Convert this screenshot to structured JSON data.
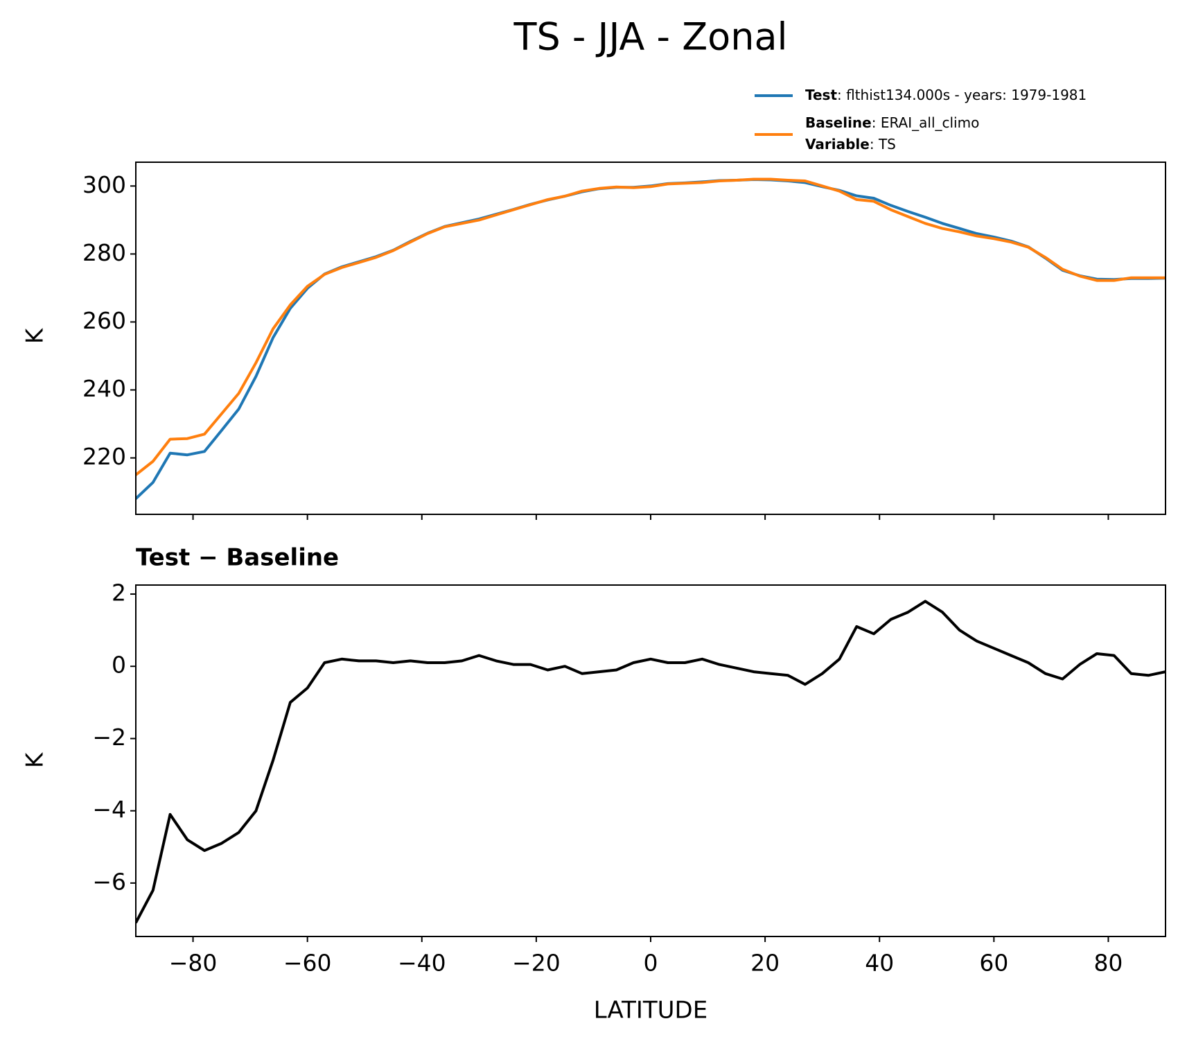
{
  "chart_data": [
    {
      "type": "line",
      "title": "TS - JJA - Zonal",
      "y_label": "K",
      "x": [
        -90,
        -87,
        -84,
        -81,
        -78,
        -75,
        -72,
        -69,
        -66,
        -63,
        -60,
        -57,
        -54,
        -51,
        -48,
        -45,
        -42,
        -39,
        -36,
        -33,
        -30,
        -27,
        -24,
        -21,
        -18,
        -15,
        -12,
        -9,
        -6,
        -3,
        0,
        3,
        6,
        9,
        12,
        15,
        18,
        21,
        24,
        27,
        30,
        33,
        36,
        39,
        42,
        45,
        48,
        51,
        54,
        57,
        60,
        63,
        66,
        69,
        72,
        75,
        78,
        81,
        84,
        87,
        90
      ],
      "series": [
        {
          "name": "Test",
          "label": ": flthist134.000s - years: 1979-1981",
          "color": "#1f77b4",
          "values": [
            208,
            212.8,
            221.4,
            220.9,
            221.9,
            228.1,
            234.4,
            244,
            255.4,
            264,
            269.9,
            274.1,
            276.2,
            277.7,
            279.2,
            281.1,
            283.7,
            286.1,
            288.1,
            289.2,
            290.3,
            291.7,
            293.1,
            294.6,
            295.9,
            297,
            298.3,
            299.2,
            299.6,
            299.6,
            300,
            300.7,
            300.9,
            301.2,
            301.6,
            301.7,
            301.9,
            301.8,
            301.5,
            301,
            299.8,
            298.7,
            297.1,
            296.4,
            294.3,
            292.5,
            290.8,
            289,
            287.5,
            286,
            285,
            283.8,
            282.1,
            278.8,
            275.2,
            273.6,
            272.6,
            272.5,
            272.8,
            272.8,
            272.9
          ]
        },
        {
          "name": "Baseline",
          "label": ": ERAI_all_climo",
          "extra_name": "Variable",
          "extra_label": ": TS",
          "color": "#ff7f0e",
          "values": [
            215,
            219,
            225.5,
            225.7,
            227,
            233,
            239,
            248,
            258,
            265,
            270.5,
            274,
            276,
            277.5,
            279,
            281,
            283.5,
            286,
            288,
            289,
            290,
            291.5,
            293,
            294.5,
            296,
            297,
            298.5,
            299.3,
            299.7,
            299.5,
            299.8,
            300.6,
            300.8,
            301,
            301.5,
            301.7,
            302,
            302,
            301.7,
            301.5,
            300,
            298.5,
            296,
            295.5,
            293,
            291,
            289,
            287.5,
            286.5,
            285.3,
            284.5,
            283.5,
            282,
            279,
            275.5,
            273.5,
            272.2,
            272.2,
            273,
            273,
            273
          ]
        }
      ],
      "xlim": [
        -90,
        90
      ],
      "xticks": [
        -80,
        -60,
        -40,
        -20,
        0,
        20,
        40,
        60,
        80
      ],
      "ylim": [
        203.4,
        307
      ],
      "yticks": [
        220,
        240,
        260,
        280,
        300
      ]
    },
    {
      "type": "line",
      "title": "Test − Baseline",
      "y_label": "K",
      "x_label": "LATITUDE",
      "x": [
        -90,
        -87,
        -84,
        -81,
        -78,
        -75,
        -72,
        -69,
        -66,
        -63,
        -60,
        -57,
        -54,
        -51,
        -48,
        -45,
        -42,
        -39,
        -36,
        -33,
        -30,
        -27,
        -24,
        -21,
        -18,
        -15,
        -12,
        -9,
        -6,
        -3,
        0,
        3,
        6,
        9,
        12,
        15,
        18,
        21,
        24,
        27,
        30,
        33,
        36,
        39,
        42,
        45,
        48,
        51,
        54,
        57,
        60,
        63,
        66,
        69,
        72,
        75,
        78,
        81,
        84,
        87,
        90
      ],
      "series": [
        {
          "color": "#000000",
          "values": [
            -7.1,
            -6.2,
            -4.1,
            -4.8,
            -5.1,
            -4.9,
            -4.6,
            -4,
            -2.6,
            -1,
            -0.6,
            0.1,
            0.2,
            0.15,
            0.15,
            0.1,
            0.15,
            0.1,
            0.1,
            0.15,
            0.3,
            0.15,
            0.05,
            0.05,
            -0.1,
            0,
            -0.2,
            -0.15,
            -0.1,
            0.1,
            0.2,
            0.1,
            0.1,
            0.2,
            0.05,
            -0.05,
            -0.15,
            -0.2,
            -0.25,
            -0.5,
            -0.2,
            0.2,
            1.1,
            0.9,
            1.3,
            1.5,
            1.8,
            1.5,
            1,
            0.7,
            0.5,
            0.3,
            0.1,
            -0.2,
            -0.35,
            0.05,
            0.35,
            0.3,
            -0.2,
            -0.25,
            -0.15
          ]
        }
      ],
      "xlim": [
        -90,
        90
      ],
      "xticks": [
        {
          "value": -80,
          "label": "−80"
        },
        {
          "value": -60,
          "label": "−60"
        },
        {
          "value": -40,
          "label": "−40"
        },
        {
          "value": -20,
          "label": "−20"
        },
        0,
        20,
        40,
        60,
        80
      ],
      "ylim": [
        -7.48,
        2.25
      ],
      "yticks": [
        {
          "value": -6,
          "label": "−6"
        },
        {
          "value": -4,
          "label": "−4"
        },
        {
          "value": -2,
          "label": "−2"
        },
        0,
        2
      ]
    }
  ]
}
